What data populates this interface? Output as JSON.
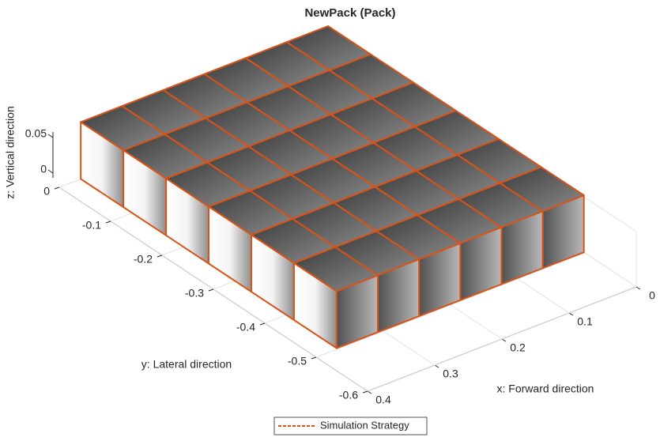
{
  "chart_data": {
    "type": "pack3d",
    "title": "NewPack (Pack)",
    "xlabel": "x: Forward direction",
    "ylabel": "y: Lateral direction",
    "zlabel": "z: Vertical direction",
    "xlim": [
      0,
      0.4
    ],
    "xticks": [
      0,
      0.1,
      0.2,
      0.3,
      0.4
    ],
    "ylim": [
      -0.6,
      0
    ],
    "yticks": [
      0,
      -0.1,
      -0.2,
      -0.3,
      -0.4,
      -0.5,
      -0.6
    ],
    "zlim": [
      0,
      0.05
    ],
    "zticks": [
      0,
      0.05
    ],
    "grid": true,
    "series": [
      {
        "name": "Simulation Strategy",
        "color": "#d95319",
        "line_style": "dashed"
      }
    ],
    "legend": "bottom"
  }
}
